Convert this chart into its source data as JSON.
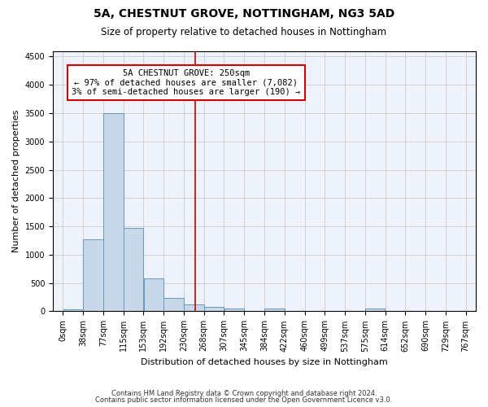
{
  "title1": "5A, CHESTNUT GROVE, NOTTINGHAM, NG3 5AD",
  "title2": "Size of property relative to detached houses in Nottingham",
  "xlabel": "Distribution of detached houses by size in Nottingham",
  "ylabel": "Number of detached properties",
  "bin_labels": [
    "0sqm",
    "38sqm",
    "77sqm",
    "115sqm",
    "153sqm",
    "192sqm",
    "230sqm",
    "268sqm",
    "307sqm",
    "345sqm",
    "384sqm",
    "422sqm",
    "460sqm",
    "499sqm",
    "537sqm",
    "575sqm",
    "614sqm",
    "652sqm",
    "690sqm",
    "729sqm",
    "767sqm"
  ],
  "bar_values": [
    30,
    1270,
    3500,
    1480,
    575,
    235,
    115,
    85,
    55,
    0,
    45,
    0,
    0,
    0,
    0,
    55,
    0,
    0,
    0,
    0,
    0
  ],
  "bar_color": "#c8d8e8",
  "bar_edge_color": "#6699bb",
  "ylim": [
    0,
    4600
  ],
  "yticks": [
    0,
    500,
    1000,
    1500,
    2000,
    2500,
    3000,
    3500,
    4000,
    4500
  ],
  "property_line_x": 250,
  "bin_width": 38,
  "annotation_title": "5A CHESTNUT GROVE: 250sqm",
  "annotation_line1": "← 97% of detached houses are smaller (7,082)",
  "annotation_line2": "3% of semi-detached houses are larger (190) →",
  "vline_color": "#cc0000",
  "annotation_box_color": "#ffffff",
  "annotation_box_edge": "#cc0000",
  "footer1": "Contains HM Land Registry data © Crown copyright and database right 2024.",
  "footer2": "Contains public sector information licensed under the Open Government Licence v3.0.",
  "plot_bg_color": "#eef2fb"
}
